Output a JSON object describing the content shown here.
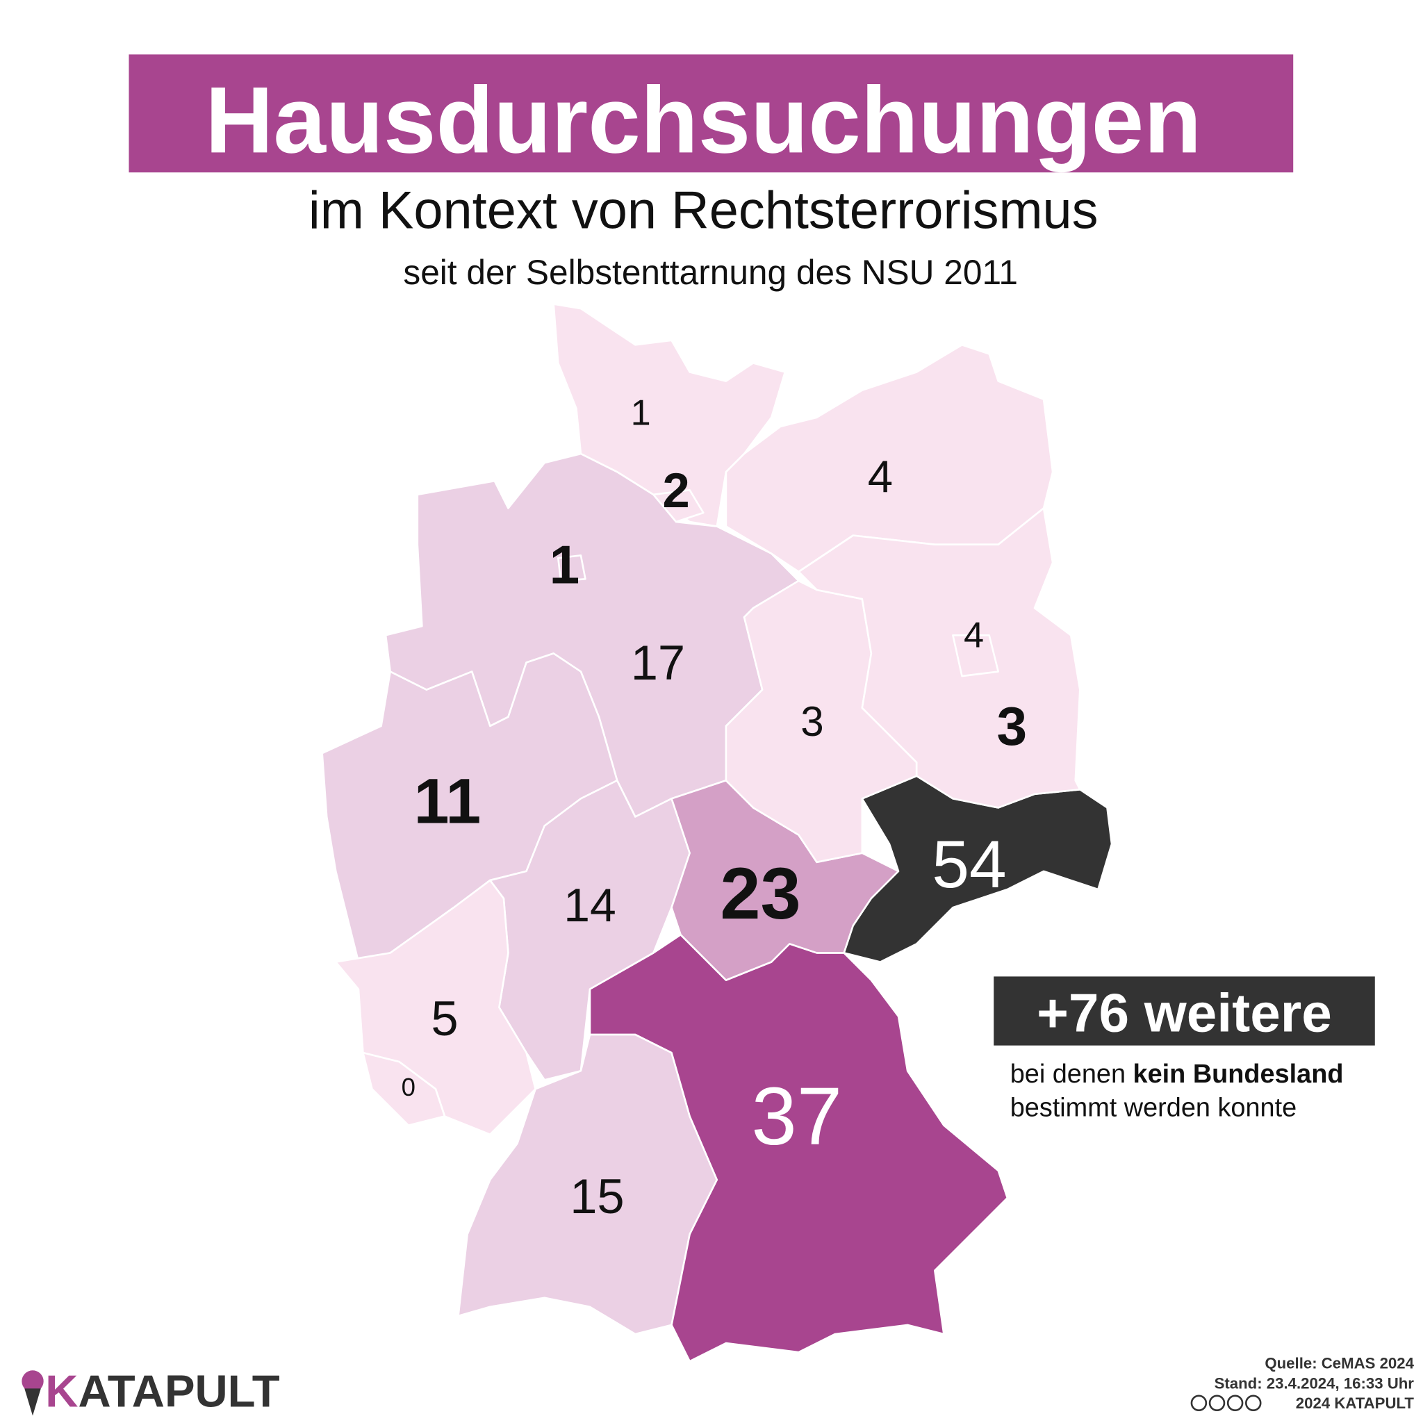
{
  "title": "Hausdurchsuchungen",
  "subtitle": "im Kontext von Rechtsterrorismus",
  "subsubtitle": "seit der Selbstenttarnung des NSU 2011",
  "colors": {
    "accent": "#a8458f",
    "dark": "#333333",
    "level1": "#f9e3ef",
    "level2": "#ebd0e4",
    "level3": "#d4a0c6"
  },
  "states": {
    "sh": {
      "value": "1"
    },
    "hh": {
      "value": "2"
    },
    "mv": {
      "value": "4"
    },
    "hb": {
      "value": "1"
    },
    "ni": {
      "value": "17"
    },
    "be": {
      "value": "4"
    },
    "st": {
      "value": "3"
    },
    "bb": {
      "value": "3"
    },
    "nw": {
      "value": "11"
    },
    "sn": {
      "value": "54"
    },
    "th": {
      "value": "23"
    },
    "he": {
      "value": "14"
    },
    "rp": {
      "value": "5"
    },
    "sl": {
      "value": "0"
    },
    "by": {
      "value": "37"
    },
    "bw": {
      "value": "15"
    }
  },
  "extra": {
    "badge": "+76 weitere",
    "line1_pre": "bei denen ",
    "line1_bold": "kein Bundesland",
    "line2": "bestimmt werden konnte"
  },
  "footer": {
    "source": "Quelle: CeMAS 2024",
    "date": "Stand: 23.4.2024, 16:33 Uhr",
    "license": "2024 KATAPULT",
    "license_icons": [
      "cc-icon",
      "by-icon",
      "nc-icon",
      "nd-icon"
    ]
  },
  "logo": {
    "text": "KATAPULT"
  }
}
